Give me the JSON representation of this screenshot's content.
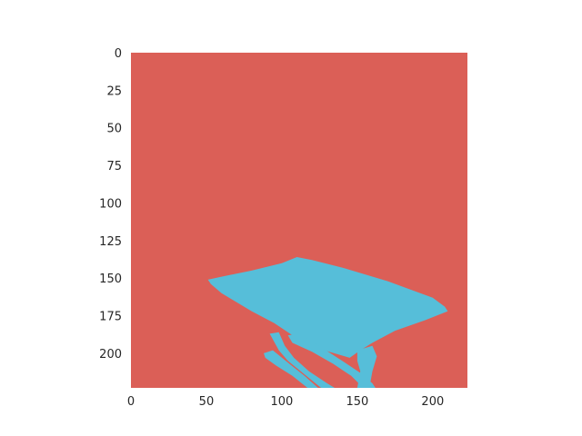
{
  "chart_data": {
    "type": "heatmap",
    "subtype": "segmentation-mask",
    "image_size": [
      224,
      224
    ],
    "xlim": [
      0,
      223
    ],
    "ylim": [
      223,
      0
    ],
    "y_inverted": true,
    "grid": false,
    "x_ticks": [
      0,
      50,
      100,
      150,
      200
    ],
    "y_ticks": [
      0,
      25,
      50,
      75,
      100,
      125,
      150,
      175,
      200
    ],
    "x_tick_labels": [
      "0",
      "50",
      "100",
      "150",
      "200"
    ],
    "y_tick_labels": [
      "0",
      "25",
      "50",
      "75",
      "100",
      "125",
      "150",
      "175",
      "200"
    ],
    "classes": [
      {
        "value": 0,
        "color": "#db5f57"
      },
      {
        "value": 1,
        "color": "#56bed9"
      }
    ],
    "regions": [
      {
        "class": 1,
        "part": "table-top",
        "polygon": [
          [
            51,
            151
          ],
          [
            60,
            149
          ],
          [
            80,
            145
          ],
          [
            100,
            140
          ],
          [
            110,
            136
          ],
          [
            120,
            138
          ],
          [
            140,
            143
          ],
          [
            170,
            152
          ],
          [
            200,
            163
          ],
          [
            208,
            169
          ],
          [
            210,
            172
          ],
          [
            195,
            178
          ],
          [
            175,
            185
          ],
          [
            160,
            193
          ],
          [
            152,
            198
          ],
          [
            145,
            203
          ],
          [
            128,
            198
          ],
          [
            110,
            190
          ],
          [
            95,
            180
          ],
          [
            80,
            172
          ],
          [
            60,
            160
          ],
          [
            53,
            154
          ]
        ]
      },
      {
        "class": 1,
        "part": "leg-left-outer",
        "polygon": [
          [
            92,
            187
          ],
          [
            98,
            186
          ],
          [
            102,
            195
          ],
          [
            108,
            203
          ],
          [
            118,
            212
          ],
          [
            130,
            220
          ],
          [
            135,
            223
          ],
          [
            126,
            223
          ],
          [
            115,
            214
          ],
          [
            104,
            205
          ],
          [
            98,
            198
          ]
        ]
      },
      {
        "class": 1,
        "part": "leg-left-inner",
        "polygon": [
          [
            88,
            200
          ],
          [
            94,
            198
          ],
          [
            105,
            207
          ],
          [
            115,
            215
          ],
          [
            124,
            223
          ],
          [
            117,
            223
          ],
          [
            107,
            215
          ],
          [
            96,
            208
          ],
          [
            89,
            203
          ]
        ]
      },
      {
        "class": 1,
        "part": "leg-center",
        "polygon": [
          [
            104,
            188
          ],
          [
            112,
            187
          ],
          [
            126,
            196
          ],
          [
            140,
            205
          ],
          [
            152,
            213
          ],
          [
            160,
            220
          ],
          [
            162,
            223
          ],
          [
            154,
            223
          ],
          [
            146,
            215
          ],
          [
            134,
            207
          ],
          [
            120,
            199
          ],
          [
            107,
            193
          ]
        ]
      },
      {
        "class": 1,
        "part": "leg-right",
        "polygon": [
          [
            150,
            198
          ],
          [
            160,
            195
          ],
          [
            163,
            202
          ],
          [
            160,
            212
          ],
          [
            158,
            223
          ],
          [
            150,
            223
          ],
          [
            152,
            212
          ],
          [
            150,
            205
          ]
        ]
      }
    ]
  }
}
